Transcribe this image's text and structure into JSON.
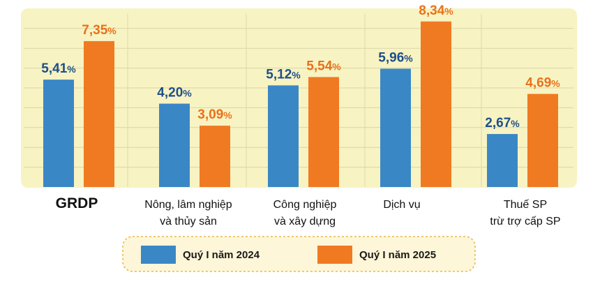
{
  "chart_data": {
    "type": "bar",
    "title": "",
    "xlabel": "",
    "ylabel": "",
    "ylim": [
      0,
      9
    ],
    "grid": true,
    "categories": [
      {
        "lines": [
          "GRDP"
        ],
        "highlight": true
      },
      {
        "lines": [
          "Nông, lâm nghiệp",
          "và thủy sản"
        ],
        "highlight": false
      },
      {
        "lines": [
          "Công nghiệp",
          "và xây dựng"
        ],
        "highlight": false
      },
      {
        "lines": [
          "Dịch vụ"
        ],
        "highlight": false
      },
      {
        "lines": [
          "Thuế SP",
          "trừ trợ cấp SP"
        ],
        "highlight": false
      }
    ],
    "series": [
      {
        "name": "Quý I năm 2024",
        "color": "#3a87c6",
        "label_color": "#1e4f8a",
        "values": [
          5.41,
          4.2,
          5.12,
          5.96,
          2.67
        ],
        "labels": [
          "5,41",
          "4,20",
          "5,12",
          "5,96",
          "2,67"
        ]
      },
      {
        "name": "Quý I năm 2025",
        "color": "#f07a22",
        "label_color": "#e8721c",
        "values": [
          7.35,
          3.09,
          5.54,
          8.34,
          4.69
        ],
        "labels": [
          "7,35",
          "3,09",
          "5,54",
          "8,34",
          "4,69"
        ]
      }
    ],
    "value_suffix": "%",
    "legend_position": "bottom-center"
  },
  "colors": {
    "plot_background": "#f8f3c2",
    "highlight_label": "#d32027",
    "legend_border": "#e6b84a",
    "legend_background": "#fdf6d8"
  }
}
